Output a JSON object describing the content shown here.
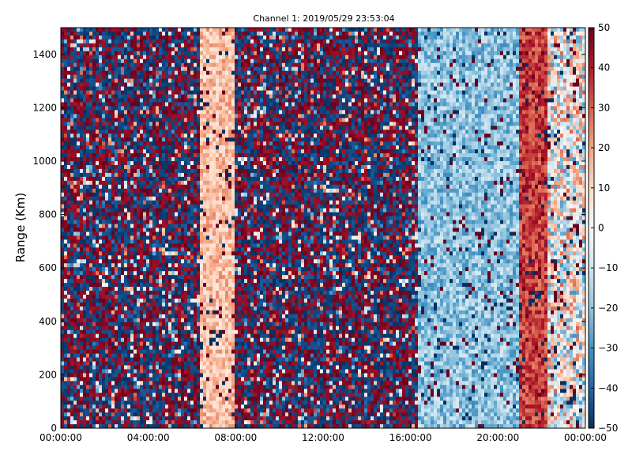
{
  "chart_data": {
    "type": "heatmap",
    "title": "Channel 1: 2019/05/29 23:53:04",
    "ylabel": "Range (Km)",
    "xlabel": "",
    "x_tick_labels": [
      "00:00:00",
      "04:00:00",
      "08:00:00",
      "12:00:00",
      "16:00:00",
      "20:00:00",
      "00:00:00"
    ],
    "x_range_hours": [
      0,
      24
    ],
    "y_ticks": [
      0,
      200,
      400,
      600,
      800,
      1000,
      1200,
      1400
    ],
    "ylim": [
      0,
      1500
    ],
    "colorbar": {
      "ticks": [
        50,
        40,
        30,
        20,
        10,
        0,
        -10,
        -20,
        -30,
        -40,
        -50
      ],
      "range": [
        -50,
        50
      ],
      "colormap": "RdBu_r",
      "low_color": "#053061",
      "mid_color": "#f7f7f7",
      "high_color": "#67001f"
    },
    "grid": false,
    "regions": [
      {
        "hours": [
          0,
          6.3
        ],
        "description": "noise",
        "mean": 0,
        "spread": 50
      },
      {
        "hours": [
          6.3,
          8.0
        ],
        "description": "warm band",
        "mean": 15,
        "spread": 10
      },
      {
        "hours": [
          8.0,
          16.3
        ],
        "description": "noise",
        "mean": 0,
        "spread": 50
      },
      {
        "hours": [
          16.3,
          20.9
        ],
        "description": "cool band",
        "mean": -20,
        "spread": 12
      },
      {
        "hours": [
          20.9,
          22.3
        ],
        "description": "hot band",
        "mean": 35,
        "spread": 10
      },
      {
        "hours": [
          22.3,
          24
        ],
        "description": "mixed",
        "mean": 0,
        "spread": 30
      }
    ]
  }
}
